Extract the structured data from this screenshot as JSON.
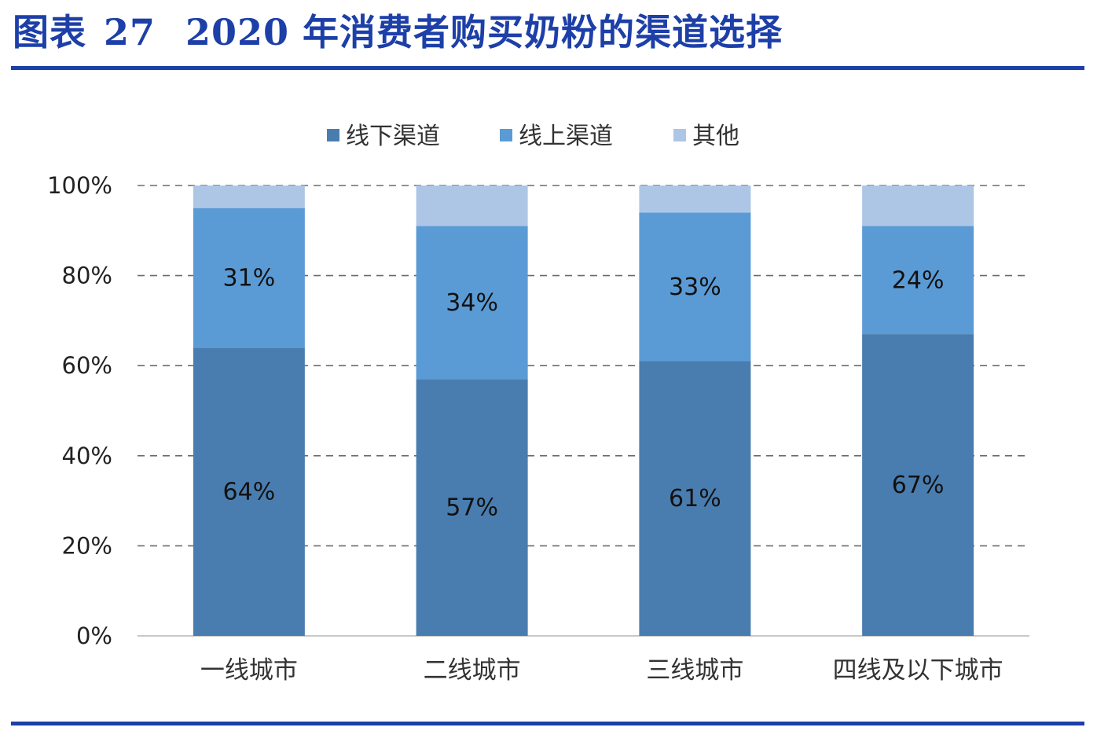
{
  "header": {
    "figure_label": "图表",
    "figure_number": "27",
    "title": "2020 年消费者购买奶粉的渠道选择"
  },
  "colors": {
    "offline": "#4a7daf",
    "online": "#5b9bd5",
    "other": "#adc6e5",
    "rule": "#1d3fa8"
  },
  "chart_data": {
    "type": "bar",
    "stacked": true,
    "categories": [
      "一线城市",
      "二线城市",
      "三线城市",
      "四线及以下城市"
    ],
    "series": [
      {
        "name": "线下渠道",
        "values": [
          64,
          57,
          61,
          67
        ],
        "labels": [
          "64%",
          "57%",
          "61%",
          "67%"
        ]
      },
      {
        "name": "线上渠道",
        "values": [
          31,
          34,
          33,
          24
        ],
        "labels": [
          "31%",
          "34%",
          "33%",
          "24%"
        ]
      },
      {
        "name": "其他",
        "values": [
          5,
          9,
          6,
          9
        ]
      }
    ],
    "yticks": [
      "0%",
      "20%",
      "40%",
      "60%",
      "80%",
      "100%"
    ],
    "ylim": [
      0,
      100
    ],
    "grid": "dashed horizontal",
    "legend": "top"
  }
}
